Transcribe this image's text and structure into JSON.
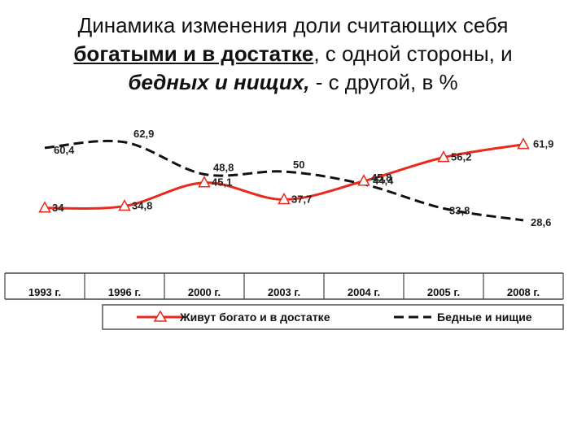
{
  "title": {
    "part1": "Динамика изменения доли считающих себя",
    "part2": "богатыми и в достатке",
    "part3": ", с одной стороны, и",
    "part4": "бедных и нищих,",
    "part5": " - с другой, в %"
  },
  "chart_data": {
    "type": "line",
    "categories": [
      "1993 г.",
      "1996 г.",
      "2000 г.",
      "2003 г.",
      "2004 г.",
      "2005 г.",
      "2008 г."
    ],
    "series": [
      {
        "name": "Живут богато и в достатке",
        "values": [
          34,
          34.8,
          45.1,
          37.7,
          45.8,
          56.2,
          61.9
        ],
        "labels": [
          "34",
          "34,8",
          "45,1",
          "37,7",
          "45,8",
          "56,2",
          "61,9"
        ],
        "color": "#e8291c",
        "style": "solid",
        "marker": "triangle"
      },
      {
        "name": "Бедные и нищие",
        "values": [
          60.4,
          62.9,
          48.8,
          50,
          44.4,
          33.8,
          28.6
        ],
        "labels": [
          "60,4",
          "62,9",
          "48,8",
          "50",
          "44,4",
          "33,8",
          "28,6"
        ],
        "color": "#111111",
        "style": "dashed",
        "marker": "none"
      }
    ],
    "ylim": [
      20,
      70
    ],
    "grid": false,
    "legend_position": "bottom"
  }
}
